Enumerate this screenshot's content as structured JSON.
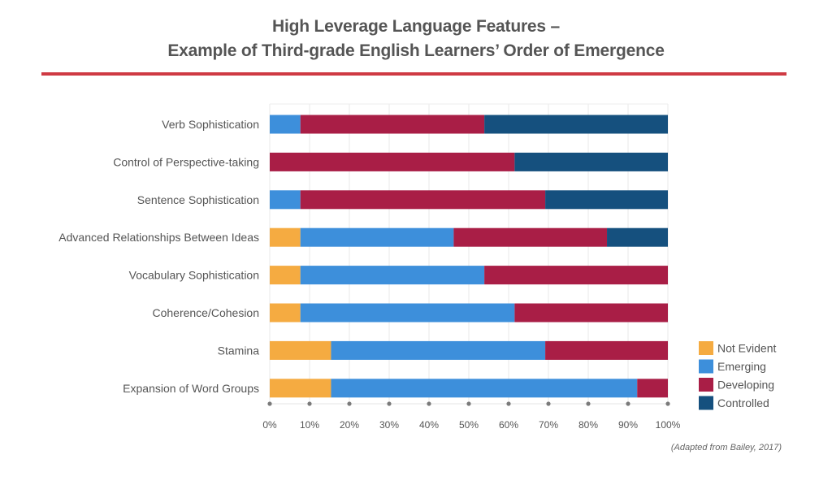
{
  "chart_data": {
    "type": "bar",
    "orientation": "horizontal",
    "stacked": true,
    "title": "High Leverage Language Features –",
    "subtitle": "Example of Third-grade English Learners’ Order of Emergence",
    "source": "(Adapted from Bailey, 2017)",
    "xlabel": "",
    "ylabel": "",
    "xlim": [
      0,
      100
    ],
    "x_ticks": [
      "0%",
      "10%",
      "20%",
      "30%",
      "40%",
      "50%",
      "60%",
      "70%",
      "80%",
      "90%",
      "100%"
    ],
    "grid": true,
    "legend_position": "bottom-right",
    "categories": [
      "Verb Sophistication",
      "Control of Perspective-taking",
      "Sentence Sophistication",
      "Advanced Relationships Between Ideas",
      "Vocabulary Sophistication",
      "Coherence/Cohesion",
      "Stamina",
      "Expansion of Word Groups"
    ],
    "series": [
      {
        "name": "Not Evident",
        "color": "#F5AB41",
        "values": [
          0,
          0,
          0,
          7.7,
          7.7,
          7.7,
          15.4,
          15.4
        ]
      },
      {
        "name": "Emerging",
        "color": "#3D8FDB",
        "values": [
          7.7,
          0,
          7.7,
          38.5,
          46.2,
          53.8,
          53.8,
          76.9
        ]
      },
      {
        "name": "Developing",
        "color": "#A91E46",
        "values": [
          46.2,
          61.5,
          61.5,
          38.5,
          46.2,
          38.5,
          30.8,
          7.7
        ]
      },
      {
        "name": "Controlled",
        "color": "#15507E",
        "values": [
          46.2,
          38.5,
          30.8,
          15.4,
          0,
          0,
          0,
          0
        ]
      }
    ]
  }
}
